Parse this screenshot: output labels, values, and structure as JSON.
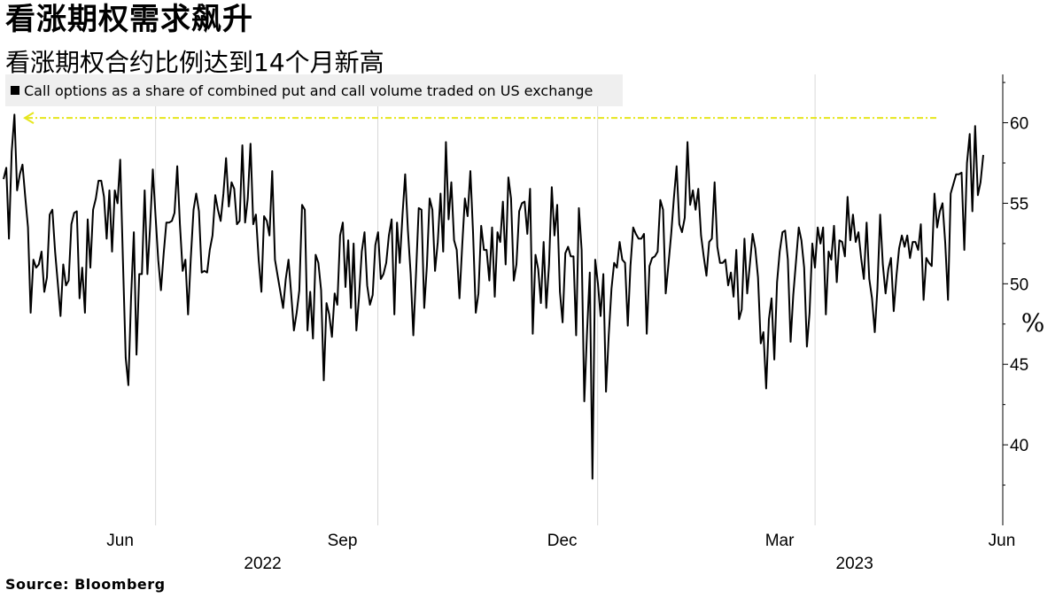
{
  "header": {
    "title": "看涨期权需求飙升",
    "subtitle": "看涨期权合约比例达到14个月新高"
  },
  "legend": {
    "label": "Call options as a share of combined put and call volume traded on US exchange"
  },
  "footer": {
    "source": "Source:  Bloomberg"
  },
  "chart_data": {
    "type": "line",
    "title": "看涨期权需求飙升",
    "subtitle": "看涨期权合约比例达到14个月新高",
    "ylabel": "%",
    "ylim": [
      35,
      63
    ],
    "yticks": [
      40,
      45,
      50,
      55,
      60
    ],
    "grid": {
      "x": true,
      "y": false
    },
    "y_axis_side": "right",
    "legend_position": "top-left",
    "x_axis": {
      "start_date": "2022-04-13",
      "end_date": "2023-06-01",
      "ticks": [
        {
          "date": "2022-06-01",
          "label": "Jun"
        },
        {
          "date": "2022-09-01",
          "label": "Sep"
        },
        {
          "date": "2022-12-01",
          "label": "Dec"
        },
        {
          "date": "2023-03-01",
          "label": "Mar"
        },
        {
          "date": "2023-06-01",
          "label": "Jun"
        }
      ],
      "year_labels": [
        {
          "date": "2022-07-30",
          "label": "2022"
        },
        {
          "date": "2023-04-01",
          "label": "2023"
        }
      ]
    },
    "series": [
      {
        "name": "Call options as a share of combined put and call volume traded on US exchange",
        "color": "#000000",
        "values": [
          56.5,
          57.2,
          52.8,
          58.2,
          60.5,
          55.8,
          56.8,
          57.4,
          55.4,
          53.5,
          48.2,
          51.5,
          51.0,
          51.2,
          52.0,
          49.5,
          50.4,
          54.3,
          54.6,
          52.0,
          50.0,
          48.0,
          51.2,
          49.9,
          50.2,
          53.7,
          54.4,
          54.5,
          49.1,
          51.0,
          48.2,
          54.0,
          51.0,
          54.6,
          55.3,
          56.4,
          56.4,
          55.4,
          52.8,
          55.8,
          52.0,
          55.8,
          55.0,
          57.7,
          51.4,
          45.4,
          43.7,
          49.2,
          53.2,
          45.6,
          50.6,
          50.6,
          55.8,
          50.6,
          53.5,
          57.1,
          54.2,
          51.5,
          49.6,
          51.9,
          53.8,
          53.8,
          53.9,
          54.4,
          57.3,
          53.7,
          50.8,
          51.5,
          48.1,
          51.6,
          54.6,
          55.6,
          54.5,
          50.7,
          50.8,
          50.7,
          52.1,
          53.0,
          55.5,
          54.6,
          53.9,
          55.6,
          57.8,
          54.8,
          56.3,
          55.9,
          53.7,
          53.9,
          58.6,
          53.8,
          55.3,
          58.7,
          53.7,
          54.3,
          51.5,
          49.5,
          54.2,
          53.9,
          53.0,
          57.0,
          51.5,
          50.5,
          49.5,
          48.5,
          50.3,
          51.5,
          49.3,
          47.1,
          48.2,
          49.6,
          54.9,
          54.6,
          47.1,
          49.5,
          46.6,
          51.8,
          51.3,
          49.6,
          44.0,
          48.8,
          48.1,
          46.7,
          49.4,
          48.7,
          53.0,
          53.8,
          49.8,
          52.7,
          48.5,
          52.5,
          47.1,
          49.2,
          52.0,
          53.2,
          49.9,
          48.7,
          49.3,
          52.4,
          53.2,
          50.3,
          50.6,
          51.3,
          53.0,
          54.0,
          48.1,
          53.8,
          51.3,
          54.3,
          56.8,
          53.3,
          50.6,
          46.8,
          50.7,
          54.7,
          54.6,
          48.5,
          51.1,
          55.3,
          54.6,
          50.8,
          52.6,
          55.6,
          52.0,
          58.8,
          54.0,
          56.3,
          52.7,
          52.1,
          49.1,
          52.4,
          55.3,
          54.2,
          57.0,
          53.2,
          48.2,
          49.4,
          53.6,
          52.1,
          52.1,
          50.2,
          53.5,
          49.2,
          53.2,
          52.6,
          55.1,
          51.2,
          56.6,
          55.3,
          50.2,
          51.2,
          54.5,
          55.0,
          55.1,
          53.1,
          55.9,
          46.9,
          51.8,
          50.9,
          48.8,
          52.6,
          48.5,
          51.2,
          56.0,
          53.0,
          54.9,
          49.5,
          47.6,
          51.9,
          52.3,
          51.7,
          51.7,
          46.8,
          54.7,
          52.1,
          42.7,
          47.0,
          50.7,
          37.9,
          51.5,
          50.0,
          48.0,
          50.6,
          43.3,
          46.8,
          49.7,
          51.3,
          51.0,
          52.6,
          51.5,
          51.3,
          47.4,
          51.1,
          53.5,
          53.1,
          52.8,
          52.8,
          53.1,
          46.9,
          51.1,
          51.6,
          51.7,
          52.0,
          55.2,
          54.6,
          49.4,
          51.2,
          53.1,
          55.3,
          57.3,
          53.7,
          53.2,
          54.1,
          58.8,
          54.9,
          55.8,
          54.6,
          55.9,
          53.0,
          51.7,
          50.5,
          52.6,
          52.8,
          56.3,
          52.3,
          51.3,
          51.3,
          51.5,
          49.9,
          50.7,
          49.2,
          52.1,
          47.8,
          48.4,
          52.8,
          49.4,
          51.2,
          53.1,
          52.2,
          50.4,
          46.3,
          47.0,
          43.5,
          47.8,
          49.1,
          45.3,
          50.1,
          52.0,
          53.2,
          53.3,
          51.5,
          46.4,
          49.3,
          51.4,
          53.5,
          52.7,
          51.0,
          46.1,
          48.2,
          52.5,
          51.0,
          53.5,
          52.5,
          53.5,
          48.1,
          52.0,
          51.5,
          53.6,
          50.1,
          52.7,
          52.6,
          51.7,
          55.4,
          52.7,
          54.3,
          52.6,
          53.2,
          51.6,
          50.3,
          53.8,
          50.3,
          49.1,
          47.0,
          49.7,
          54.3,
          51.2,
          49.4,
          50.9,
          51.6,
          48.3,
          50.5,
          52.2,
          53.0,
          52.3,
          53.0,
          51.6,
          52.6,
          52.6,
          52.1,
          53.7,
          49.0,
          51.6,
          51.3,
          51.1,
          55.6,
          53.5,
          54.5,
          55.0,
          52.5,
          49.0,
          55.6,
          56.2,
          56.8,
          56.8,
          56.9,
          52.1,
          57.5,
          59.3,
          54.5,
          59.8,
          55.5,
          56.3,
          58.0
        ]
      }
    ],
    "reference_line": {
      "value": 60.3,
      "color": "#e6e61e",
      "style": "dash-dot-arrow"
    }
  }
}
